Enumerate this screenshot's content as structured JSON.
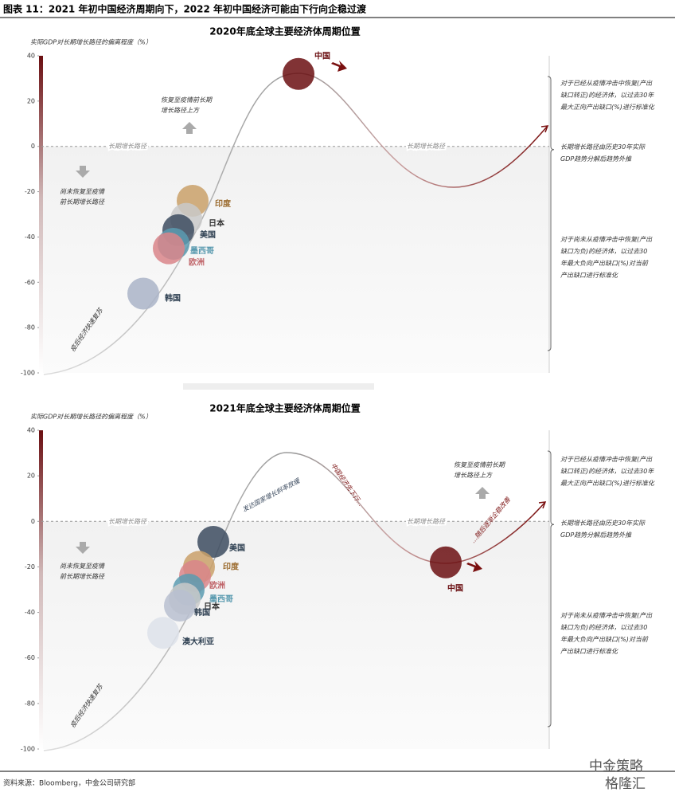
{
  "figure_title": "图表 11：2021 年初中国经济周期向下，2022 年初中国经济可能由下行向企稳过渡",
  "source": "资料来源：Bloomberg，中金公司研究部",
  "watermark": [
    "中金策略",
    "格隆汇"
  ],
  "chart_data": [
    {
      "type": "bubble",
      "title": "2020年底全球主要经济体周期位置",
      "y_label": "实际GDP对长期增长路径的偏离程度（%）",
      "ylim": [
        -100,
        40
      ],
      "yticks": [
        -100,
        -80,
        -60,
        -40,
        -20,
        0,
        20,
        40
      ],
      "baseline_label": "长期增长路径",
      "series": [
        {
          "name": "中国",
          "color": "#6b0f12",
          "label_color": "#6b0f12",
          "values": [
            32
          ]
        },
        {
          "name": "印度",
          "color": "#c9a068",
          "label_color": "#9b6b2e",
          "values": [
            -24
          ]
        },
        {
          "name": "日本",
          "color": "#c9c9c9",
          "label_color": "#333333",
          "values": [
            -32
          ]
        },
        {
          "name": "美国",
          "color": "#3d4c60",
          "label_color": "#2c3e50",
          "values": [
            -37
          ]
        },
        {
          "name": "墨西哥",
          "color": "#5b9bb0",
          "label_color": "#5b9bb0",
          "values": [
            -43
          ]
        },
        {
          "name": "欧洲",
          "color": "#d9858a",
          "label_color": "#c0656a",
          "values": [
            -45
          ]
        },
        {
          "name": "韩国",
          "color": "#aab4c8",
          "label_color": "#2c3e50",
          "values": [
            -65
          ]
        }
      ],
      "annotations": [
        [
          "恢复至疫情前长期",
          "增长路径上方"
        ],
        [
          "尚未恢复至疫情",
          "前长期增长路径"
        ],
        [
          "疫后经济快速复苏"
        ]
      ],
      "notes": [
        [
          "对于已经从疫情冲击中恢复(产出",
          "缺口转正)的经济体，以过去30年",
          "最大正向产出缺口(%)进行标准化"
        ],
        [
          "长期增长路径由历史30年实际",
          "GDP趋势分解后趋势外推"
        ],
        [
          "对于尚未从疫情冲击中恢复(产出",
          "缺口为负)的经济体，以过去30",
          "年最大负向产出缺口(%)对当前",
          "产出缺口进行标准化"
        ]
      ]
    },
    {
      "type": "bubble",
      "title": "2021年底全球主要经济体周期位置",
      "y_label": "实际GDP对长期增长路径的偏离程度（%）",
      "ylim": [
        -100,
        40
      ],
      "yticks": [
        -100,
        -80,
        -60,
        -40,
        -20,
        0,
        20,
        40
      ],
      "baseline_label": "长期增长路径",
      "series": [
        {
          "name": "美国",
          "color": "#3d4c60",
          "label_color": "#2c3e50",
          "values": [
            -9
          ]
        },
        {
          "name": "印度",
          "color": "#c9a068",
          "label_color": "#9b6b2e",
          "values": [
            -20
          ]
        },
        {
          "name": "欧洲",
          "color": "#d9858a",
          "label_color": "#c0656a",
          "values": [
            -24
          ]
        },
        {
          "name": "墨西哥",
          "color": "#5b9bb0",
          "label_color": "#5b9bb0",
          "values": [
            -30
          ]
        },
        {
          "name": "日本",
          "color": "#c9c9c9",
          "label_color": "#333333",
          "values": [
            -34
          ]
        },
        {
          "name": "韩国",
          "color": "#b8c0d0",
          "label_color": "#2c3e50",
          "values": [
            -37
          ]
        },
        {
          "name": "澳大利亚",
          "color": "#dde2ea",
          "label_color": "#2c3e50",
          "values": [
            -49
          ]
        },
        {
          "name": "中国",
          "color": "#6b0f12",
          "label_color": "#6b0f12",
          "values": [
            -18
          ]
        }
      ],
      "annotations": [
        [
          "恢复至疫情前长期",
          "增长路径上方"
        ],
        [
          "尚未恢复至疫情",
          "前长期增长路径"
        ],
        [
          "疫后经济快速复苏"
        ],
        [
          "发达国家增长斜率放缓"
        ],
        [
          "中国经济先下行..."
        ],
        [
          "...随后逐渐企稳改善"
        ]
      ],
      "notes": [
        [
          "对于已经从疫情冲击中恢复(产出",
          "缺口转正)的经济体，以过去30年",
          "最大正向产出缺口(%)进行标准化"
        ],
        [
          "长期增长路径由历史30年实际",
          "GDP趋势分解后趋势外推"
        ],
        [
          "对于尚未从疫情冲击中恢复(产出",
          "缺口为负)的经济体，以过去30",
          "年最大负向产出缺口(%)对当前",
          "产出缺口进行标准化"
        ]
      ]
    }
  ]
}
